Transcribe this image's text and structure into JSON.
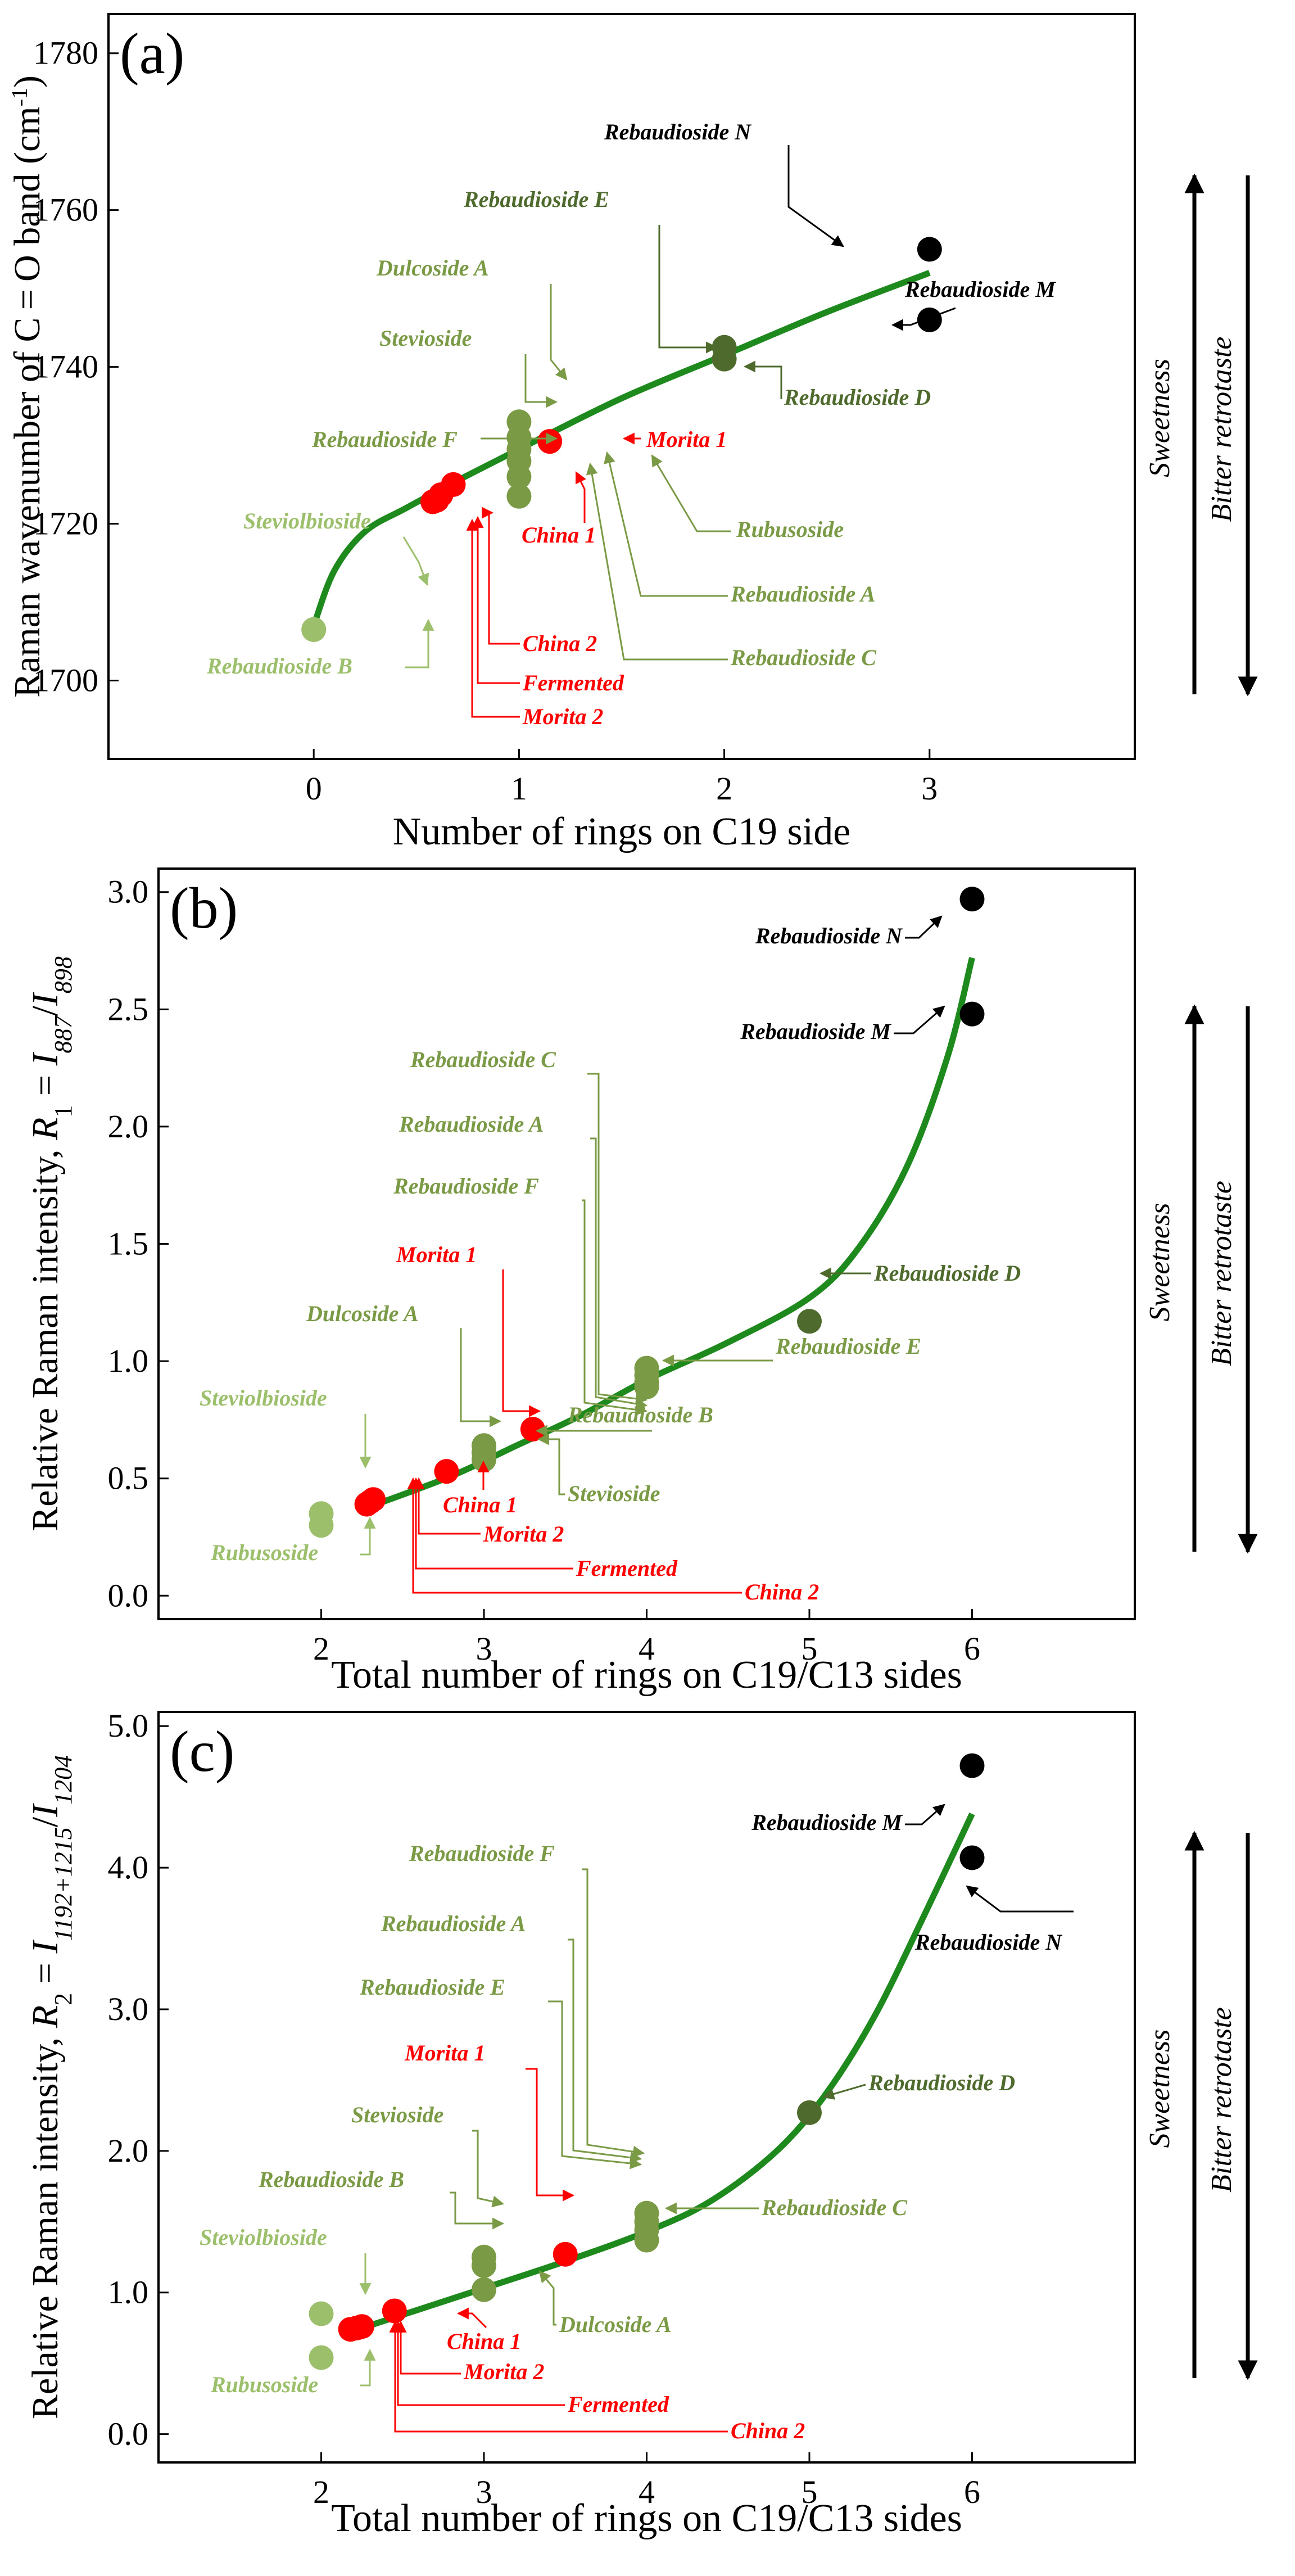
{
  "colors": {
    "black": "#000000",
    "light": "#9cbf6b",
    "mid": "#7a9a45",
    "dark": "#4e6a2c",
    "red": "#ff0000",
    "curve": "#1e8a1e"
  },
  "side_labels": {
    "sweetness": "Sweetness",
    "bitter": "Bitter retrotaste"
  },
  "chart_data": [
    {
      "type": "scatter",
      "panel": "(a)",
      "xlabel": "Number of rings on C19 side",
      "ylabel": "Raman wavenumber of C = O band (cm",
      "ylabel_sup": "-1",
      "ylabel_end": ")",
      "xlim": [
        -1.0,
        4.0
      ],
      "ylim": [
        1690,
        1785
      ],
      "xticks": [
        0,
        1,
        2,
        3
      ],
      "yticks": [
        1700,
        1720,
        1740,
        1760,
        1780
      ],
      "curve": [
        [
          0,
          1707
        ],
        [
          0.1,
          1714
        ],
        [
          0.25,
          1719
        ],
        [
          0.45,
          1722
        ],
        [
          0.7,
          1725.5
        ],
        [
          1.0,
          1729.5
        ],
        [
          1.5,
          1736
        ],
        [
          2.0,
          1741.5
        ],
        [
          2.5,
          1747
        ],
        [
          3.0,
          1752
        ]
      ],
      "points": [
        {
          "name": "Rebaudioside N",
          "x": 3.0,
          "y": 1755,
          "color": "black"
        },
        {
          "name": "Rebaudioside M",
          "x": 3.0,
          "y": 1746,
          "color": "black"
        },
        {
          "name": "Rebaudioside E",
          "x": 2.0,
          "y": 1742.5,
          "color": "dark"
        },
        {
          "name": "Rebaudioside D",
          "x": 2.0,
          "y": 1741,
          "color": "dark"
        },
        {
          "name": "Dulcoside A",
          "x": 1.0,
          "y": 1733,
          "color": "mid"
        },
        {
          "name": "Stevioside",
          "x": 1.0,
          "y": 1731,
          "color": "mid"
        },
        {
          "name": "Rebaudioside F",
          "x": 1.0,
          "y": 1729.5,
          "color": "mid"
        },
        {
          "name": "Rubusoside",
          "x": 1.0,
          "y": 1728,
          "color": "mid"
        },
        {
          "name": "Rebaudioside A",
          "x": 1.0,
          "y": 1726,
          "color": "mid"
        },
        {
          "name": "Rebaudioside C",
          "x": 1.0,
          "y": 1723.5,
          "color": "mid"
        },
        {
          "name": "Morita 1",
          "x": 1.15,
          "y": 1730.5,
          "color": "red"
        },
        {
          "name": "China 1",
          "x": 0.68,
          "y": 1725,
          "color": "red"
        },
        {
          "name": "China 2",
          "x": 0.6,
          "y": 1723,
          "color": "red"
        },
        {
          "name": "Fermented",
          "x": 0.62,
          "y": 1723.7,
          "color": "red"
        },
        {
          "name": "Morita 2",
          "x": 0.58,
          "y": 1722.8,
          "color": "red"
        },
        {
          "name": "Steviolbioside",
          "x": 0.0,
          "y": 1706.5,
          "color": "light"
        },
        {
          "name": "Rebaudioside B",
          "x": 0.0,
          "y": 1706.5,
          "color": "light"
        }
      ]
    },
    {
      "type": "scatter",
      "panel": "(b)",
      "xlabel": "Total number of rings on C19/C13 sides",
      "ylabel_parts": [
        "Relative Raman intensity, ",
        "R",
        "1",
        " = ",
        "I",
        "887",
        "/",
        "I",
        "898"
      ],
      "xlim": [
        1.0,
        7.0
      ],
      "ylim": [
        -0.1,
        3.1
      ],
      "xticks": [
        2,
        3,
        4,
        5,
        6
      ],
      "yticks": [
        "0.0",
        "0.5",
        "1.0",
        "1.5",
        "2.0",
        "2.5",
        "3.0"
      ],
      "curve": [
        [
          2.3,
          0.38
        ],
        [
          2.8,
          0.51
        ],
        [
          3.2,
          0.64
        ],
        [
          3.6,
          0.77
        ],
        [
          4.0,
          0.92
        ],
        [
          4.5,
          1.08
        ],
        [
          5.0,
          1.27
        ],
        [
          5.3,
          1.48
        ],
        [
          5.6,
          1.83
        ],
        [
          5.85,
          2.3
        ],
        [
          6.0,
          2.72
        ]
      ],
      "points": [
        {
          "name": "Rebaudioside N",
          "x": 6.0,
          "y": 2.97,
          "color": "black"
        },
        {
          "name": "Rebaudioside M",
          "x": 6.0,
          "y": 2.48,
          "color": "black"
        },
        {
          "name": "Rebaudioside D",
          "x": 5.0,
          "y": 1.17,
          "color": "dark"
        },
        {
          "name": "Rebaudioside C",
          "x": 4.0,
          "y": 0.97,
          "color": "mid"
        },
        {
          "name": "Rebaudioside A",
          "x": 4.0,
          "y": 0.94,
          "color": "mid"
        },
        {
          "name": "Rebaudioside F",
          "x": 4.0,
          "y": 0.91,
          "color": "mid"
        },
        {
          "name": "Rebaudioside E",
          "x": 4.0,
          "y": 0.89,
          "color": "mid"
        },
        {
          "name": "Rebaudioside B",
          "x": 3.0,
          "y": 0.64,
          "color": "mid"
        },
        {
          "name": "Dulcoside A",
          "x": 3.0,
          "y": 0.61,
          "color": "mid"
        },
        {
          "name": "Stevioside",
          "x": 3.0,
          "y": 0.58,
          "color": "mid"
        },
        {
          "name": "Morita 1",
          "x": 3.3,
          "y": 0.71,
          "color": "red"
        },
        {
          "name": "China 1",
          "x": 2.77,
          "y": 0.53,
          "color": "red"
        },
        {
          "name": "Morita 2",
          "x": 2.32,
          "y": 0.41,
          "color": "red"
        },
        {
          "name": "Fermented",
          "x": 2.3,
          "y": 0.4,
          "color": "red"
        },
        {
          "name": "China 2",
          "x": 2.28,
          "y": 0.39,
          "color": "red"
        },
        {
          "name": "Steviolbioside",
          "x": 2.0,
          "y": 0.35,
          "color": "light"
        },
        {
          "name": "Rubusoside",
          "x": 2.0,
          "y": 0.3,
          "color": "light"
        }
      ]
    },
    {
      "type": "scatter",
      "panel": "(c)",
      "xlabel": "Total number of rings on C19/C13 sides",
      "ylabel_parts": [
        "Relative Raman intensity, ",
        "R",
        "2",
        " = ",
        "I",
        "1192+1215",
        "/",
        "I",
        "1204"
      ],
      "xlim": [
        1.0,
        7.0
      ],
      "ylim": [
        -0.2,
        5.1
      ],
      "xticks": [
        2,
        3,
        4,
        5,
        6
      ],
      "yticks": [
        "0.0",
        "1.0",
        "2.0",
        "3.0",
        "4.0",
        "5.0"
      ],
      "curve": [
        [
          2.2,
          0.73
        ],
        [
          2.6,
          0.88
        ],
        [
          3.0,
          1.03
        ],
        [
          3.5,
          1.22
        ],
        [
          4.0,
          1.43
        ],
        [
          4.4,
          1.65
        ],
        [
          4.8,
          2.0
        ],
        [
          5.1,
          2.4
        ],
        [
          5.4,
          2.95
        ],
        [
          5.7,
          3.65
        ],
        [
          6.0,
          4.38
        ]
      ],
      "points": [
        {
          "name": "Rebaudioside M",
          "x": 6.0,
          "y": 4.72,
          "color": "black"
        },
        {
          "name": "Rebaudioside N",
          "x": 6.0,
          "y": 4.07,
          "color": "black"
        },
        {
          "name": "Rebaudioside D",
          "x": 5.0,
          "y": 2.27,
          "color": "dark"
        },
        {
          "name": "Rebaudioside F",
          "x": 4.0,
          "y": 1.56,
          "color": "mid"
        },
        {
          "name": "Rebaudioside A",
          "x": 4.0,
          "y": 1.5,
          "color": "mid"
        },
        {
          "name": "Rebaudioside E",
          "x": 4.0,
          "y": 1.44,
          "color": "mid"
        },
        {
          "name": "Rebaudioside C",
          "x": 4.0,
          "y": 1.37,
          "color": "mid"
        },
        {
          "name": "Rebaudioside B",
          "x": 3.0,
          "y": 1.25,
          "color": "mid"
        },
        {
          "name": "Stevioside",
          "x": 3.0,
          "y": 1.19,
          "color": "mid"
        },
        {
          "name": "Dulcoside A",
          "x": 3.0,
          "y": 1.02,
          "color": "mid"
        },
        {
          "name": "Morita 1",
          "x": 3.5,
          "y": 1.27,
          "color": "red"
        },
        {
          "name": "China 1",
          "x": 2.45,
          "y": 0.87,
          "color": "red"
        },
        {
          "name": "Morita 2",
          "x": 2.25,
          "y": 0.76,
          "color": "red"
        },
        {
          "name": "Fermented",
          "x": 2.22,
          "y": 0.75,
          "color": "red"
        },
        {
          "name": "China 2",
          "x": 2.18,
          "y": 0.74,
          "color": "red"
        },
        {
          "name": "Steviolbioside",
          "x": 2.0,
          "y": 0.85,
          "color": "light"
        },
        {
          "name": "Rubusoside",
          "x": 2.0,
          "y": 0.54,
          "color": "light"
        }
      ]
    }
  ]
}
